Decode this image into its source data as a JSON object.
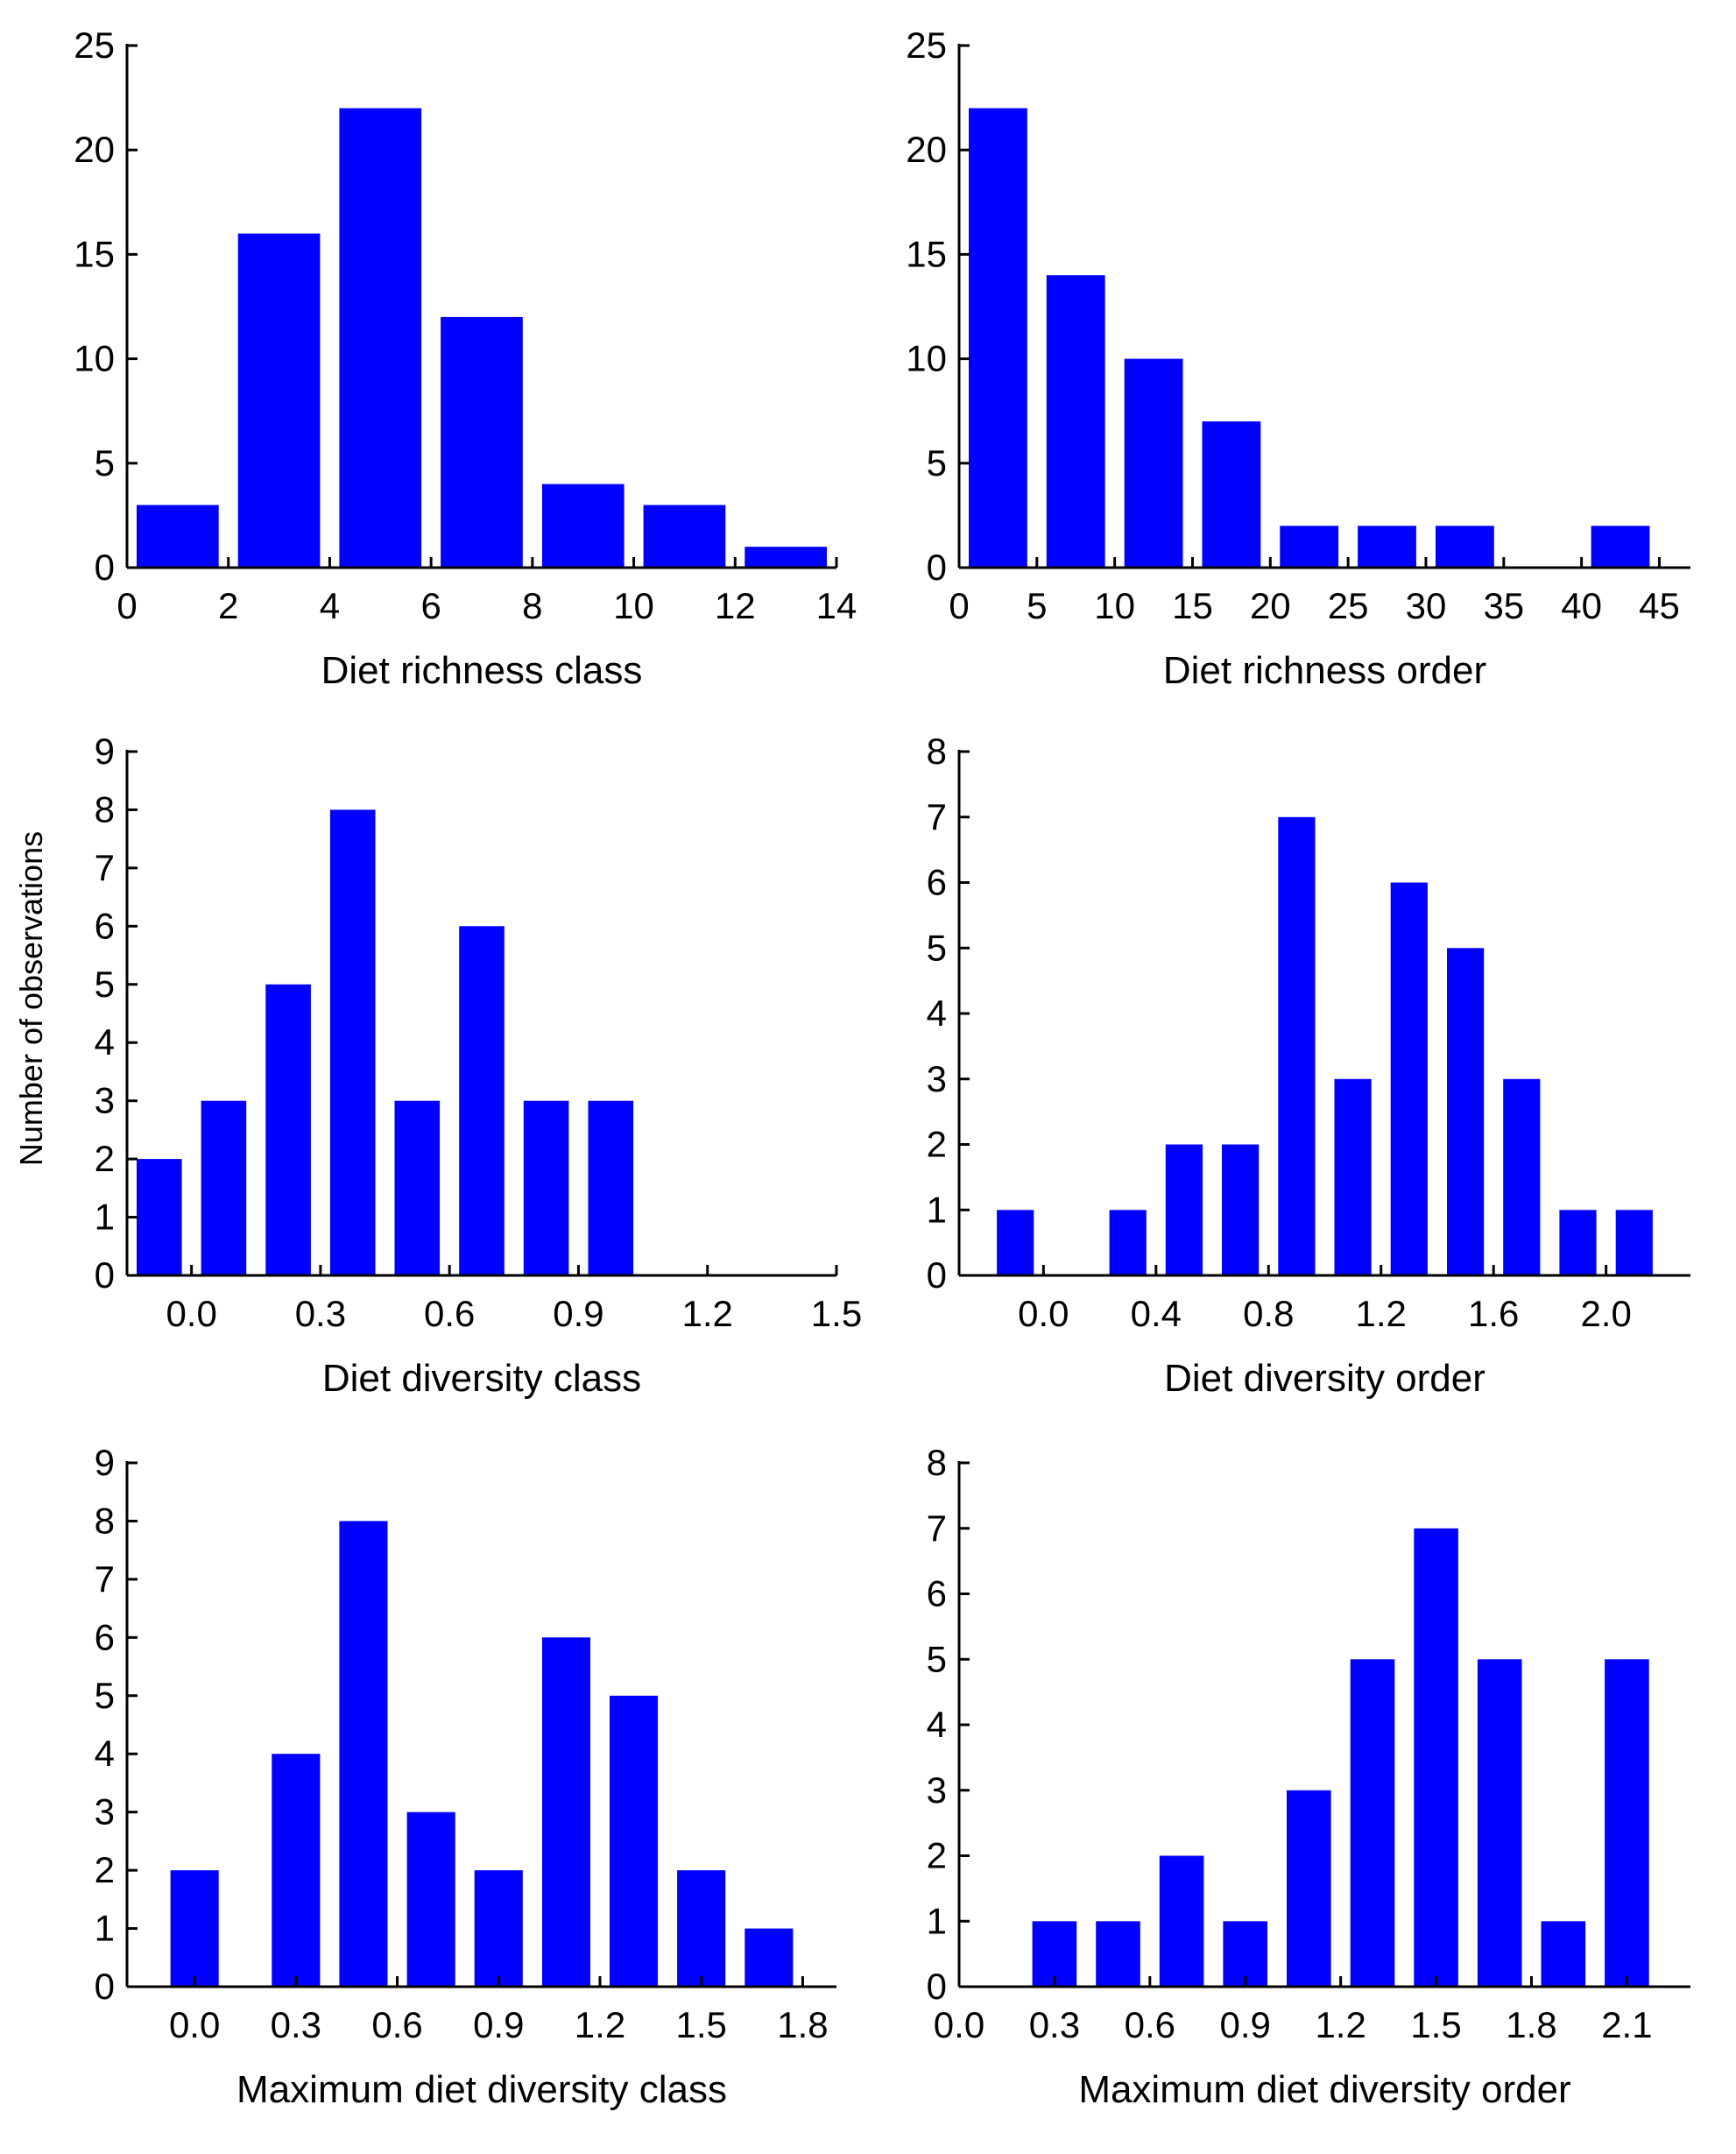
{
  "colors": {
    "bar": "#0000ff",
    "axis": "#000000",
    "background": "#ffffff"
  },
  "shared_ylabel": "Number of observations",
  "chart_data": [
    {
      "type": "bar",
      "xlabel": "Diet richness class",
      "ylabel": "",
      "bin_centers": [
        1,
        3,
        5,
        7,
        9,
        11,
        13
      ],
      "bin_width": 2,
      "values": [
        3,
        16,
        22,
        12,
        4,
        3,
        1
      ],
      "xlim": [
        0,
        14
      ],
      "ylim": [
        0,
        25
      ],
      "xticks": [
        0,
        2,
        4,
        6,
        8,
        10,
        12,
        14
      ],
      "xtick_labels": [
        "0",
        "2",
        "4",
        "6",
        "8",
        "10",
        "12",
        "14"
      ],
      "yticks": [
        0,
        5,
        10,
        15,
        20,
        25
      ],
      "ytick_labels": [
        "0",
        "5",
        "10",
        "15",
        "20",
        "25"
      ]
    },
    {
      "type": "bar",
      "xlabel": "Diet richness order",
      "ylabel": "",
      "bin_centers": [
        2.5,
        7.5,
        12.5,
        17.5,
        22.5,
        27.5,
        32.5,
        37.5,
        42.5
      ],
      "bin_width": 5,
      "values": [
        22,
        14,
        10,
        7,
        2,
        2,
        2,
        0,
        2
      ],
      "xlim": [
        0,
        47
      ],
      "ylim": [
        0,
        25
      ],
      "xticks": [
        0,
        5,
        10,
        15,
        20,
        25,
        30,
        35,
        40,
        45
      ],
      "xtick_labels": [
        "0",
        "5",
        "10",
        "15",
        "20",
        "25",
        "30",
        "35",
        "40",
        "45"
      ],
      "yticks": [
        0,
        5,
        10,
        15,
        20,
        25
      ],
      "ytick_labels": [
        "0",
        "5",
        "10",
        "15",
        "20",
        "25"
      ]
    },
    {
      "type": "bar",
      "xlabel": "Diet diversity class",
      "ylabel": "Number of observations",
      "bin_centers": [
        -0.075,
        0.075,
        0.225,
        0.375,
        0.525,
        0.675,
        0.825,
        0.975
      ],
      "bin_width": 0.15,
      "values": [
        2,
        3,
        5,
        8,
        3,
        6,
        3,
        3
      ],
      "xlim": [
        -0.15,
        1.5
      ],
      "ylim": [
        0,
        9
      ],
      "xticks": [
        0.0,
        0.3,
        0.6,
        0.9,
        1.2,
        1.5
      ],
      "xtick_labels": [
        "0.0",
        "0.3",
        "0.6",
        "0.9",
        "1.2",
        "1.5"
      ],
      "yticks": [
        0,
        1,
        2,
        3,
        4,
        5,
        6,
        7,
        8,
        9
      ],
      "ytick_labels": [
        "0",
        "1",
        "2",
        "3",
        "4",
        "5",
        "6",
        "7",
        "8",
        "9"
      ]
    },
    {
      "type": "bar",
      "xlabel": "Diet diversity order",
      "ylabel": "",
      "bin_centers": [
        -0.1,
        0.1,
        0.3,
        0.5,
        0.7,
        0.9,
        1.1,
        1.3,
        1.5,
        1.7,
        1.9,
        2.1
      ],
      "bin_width": 0.2,
      "values": [
        1,
        0,
        1,
        2,
        2,
        7,
        3,
        6,
        5,
        3,
        1,
        1
      ],
      "xlim": [
        -0.3,
        2.3
      ],
      "ylim": [
        0,
        8
      ],
      "xticks": [
        0.0,
        0.4,
        0.8,
        1.2,
        1.6,
        2.0
      ],
      "xtick_labels": [
        "0.0",
        "0.4",
        "0.8",
        "1.2",
        "1.6",
        "2.0"
      ],
      "yticks": [
        0,
        1,
        2,
        3,
        4,
        5,
        6,
        7,
        8
      ],
      "ytick_labels": [
        "0",
        "1",
        "2",
        "3",
        "4",
        "5",
        "6",
        "7",
        "8"
      ]
    },
    {
      "type": "bar",
      "xlabel": "Maximum diet diversity class",
      "ylabel": "",
      "bin_centers": [
        0.0,
        0.3,
        0.5,
        0.7,
        0.9,
        1.1,
        1.3,
        1.5,
        1.7
      ],
      "bin_width": 0.2,
      "values": [
        2,
        4,
        8,
        3,
        2,
        6,
        5,
        2,
        1
      ],
      "xlim": [
        -0.2,
        1.9
      ],
      "ylim": [
        0,
        9
      ],
      "xticks": [
        0.0,
        0.3,
        0.6,
        0.9,
        1.2,
        1.5,
        1.8
      ],
      "xtick_labels": [
        "0.0",
        "0.3",
        "0.6",
        "0.9",
        "1.2",
        "1.5",
        "1.8"
      ],
      "yticks": [
        0,
        1,
        2,
        3,
        4,
        5,
        6,
        7,
        8,
        9
      ],
      "ytick_labels": [
        "0",
        "1",
        "2",
        "3",
        "4",
        "5",
        "6",
        "7",
        "8",
        "9"
      ]
    },
    {
      "type": "bar",
      "xlabel": "Maximum diet diversity order",
      "ylabel": "",
      "bin_centers": [
        0.3,
        0.5,
        0.7,
        0.9,
        1.1,
        1.3,
        1.5,
        1.7,
        1.9,
        2.1
      ],
      "bin_width": 0.2,
      "values": [
        1,
        1,
        2,
        1,
        3,
        5,
        7,
        5,
        1,
        5
      ],
      "xlim": [
        0.0,
        2.3
      ],
      "ylim": [
        0,
        8
      ],
      "xticks": [
        0.0,
        0.3,
        0.6,
        0.9,
        1.2,
        1.5,
        1.8,
        2.1
      ],
      "xtick_labels": [
        "0.0",
        "0.3",
        "0.6",
        "0.9",
        "1.2",
        "1.5",
        "1.8",
        "2.1"
      ],
      "yticks": [
        0,
        1,
        2,
        3,
        4,
        5,
        6,
        7,
        8
      ],
      "ytick_labels": [
        "0",
        "1",
        "2",
        "3",
        "4",
        "5",
        "6",
        "7",
        "8"
      ]
    }
  ]
}
